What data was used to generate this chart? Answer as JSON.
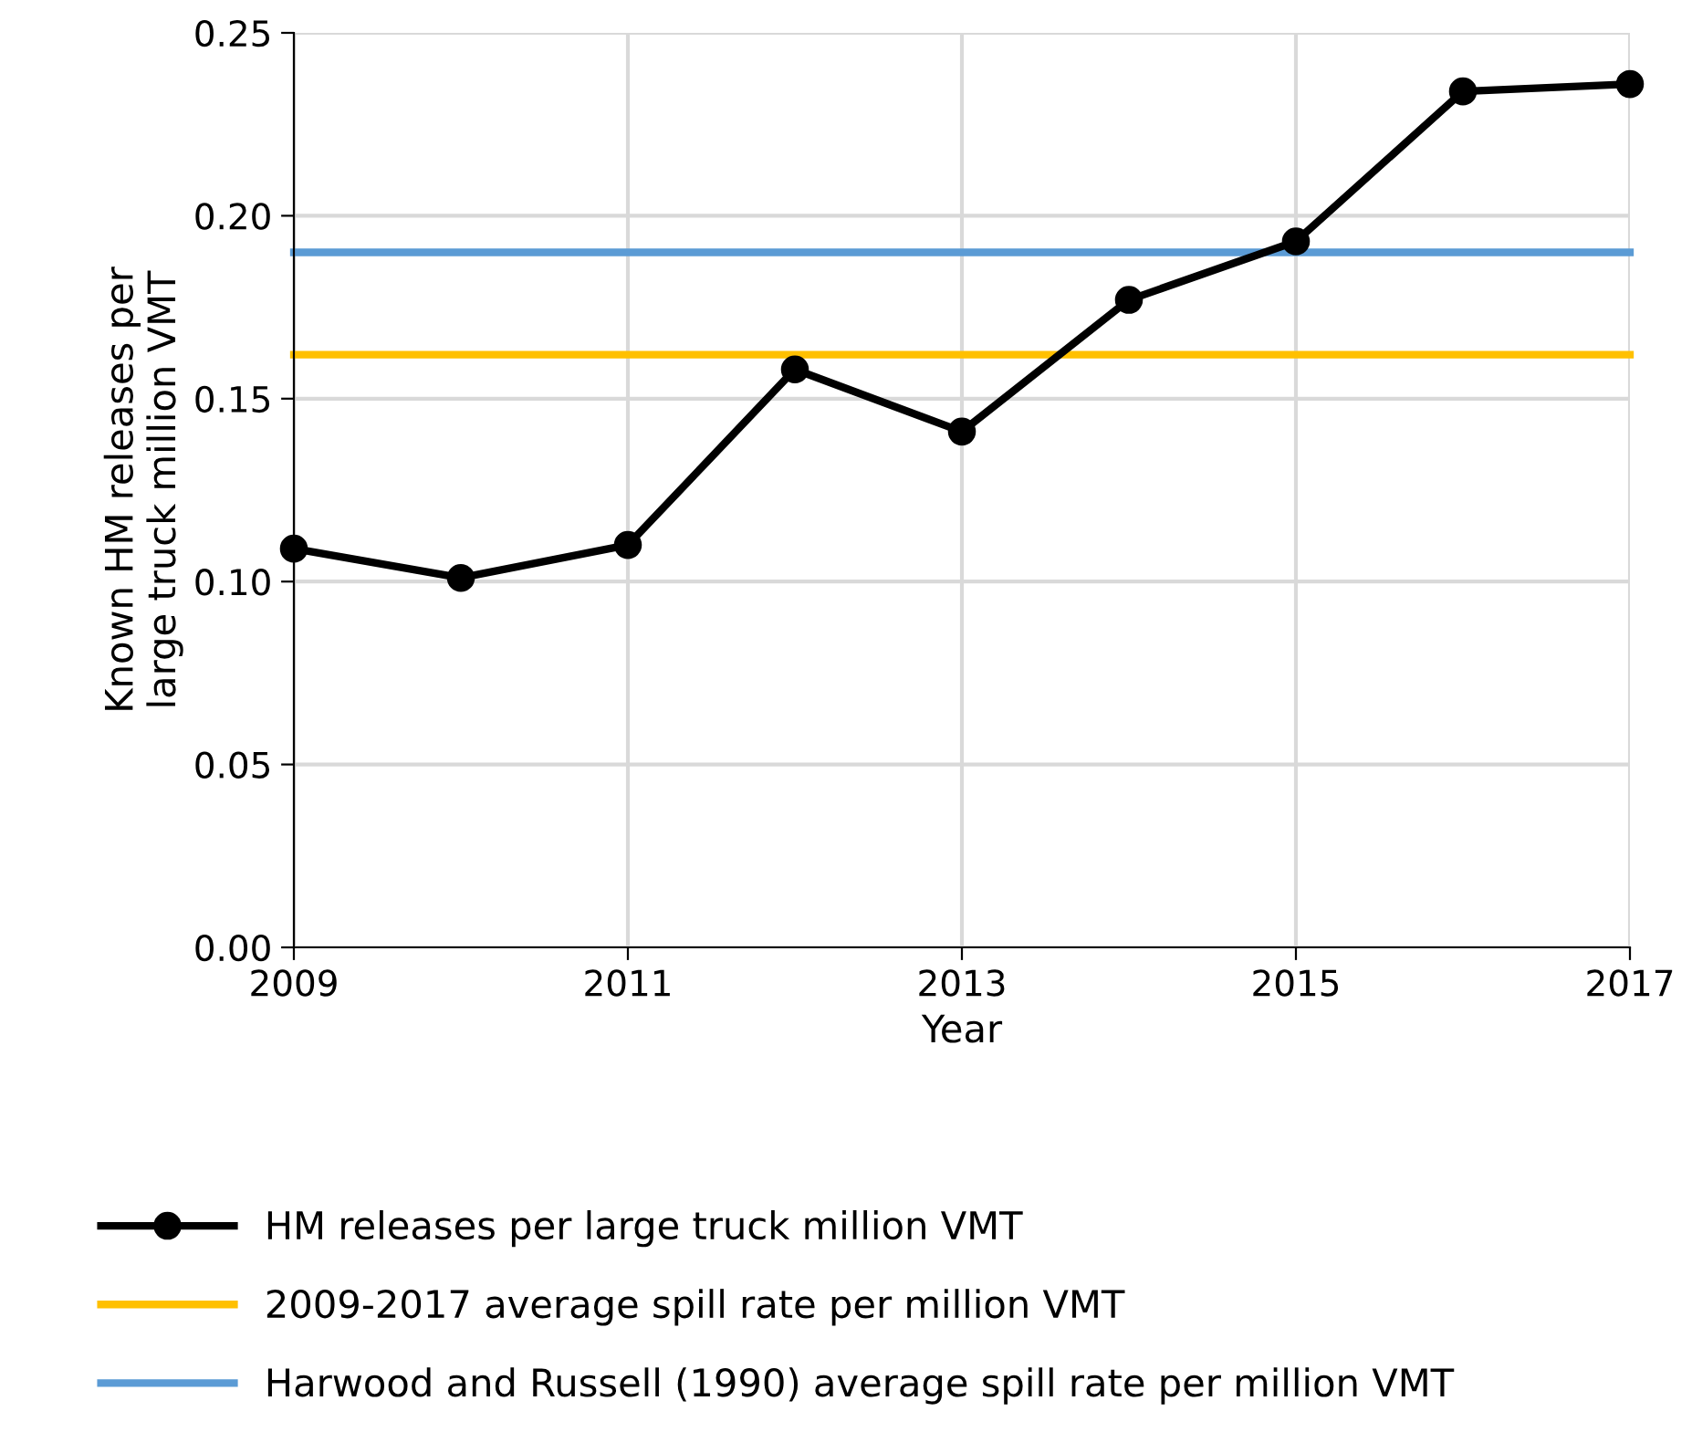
{
  "chart_data": {
    "type": "line",
    "xlabel": "Year",
    "ylabel": "Known HM releases per\nlarge truck million VMT",
    "x": [
      2009,
      2010,
      2011,
      2012,
      2013,
      2014,
      2015,
      2016,
      2017
    ],
    "series": [
      {
        "name": "HM releases per large truck million VMT",
        "color": "#000000",
        "values": [
          0.109,
          0.101,
          0.11,
          0.158,
          0.141,
          0.177,
          0.193,
          0.234,
          0.236
        ]
      },
      {
        "name": "2009-2017 average spill rate per million VMT",
        "color": "#ffc000",
        "values": [
          0.162,
          0.162,
          0.162,
          0.162,
          0.162,
          0.162,
          0.162,
          0.162,
          0.162
        ],
        "marker": "none"
      },
      {
        "name": "Harwood and Russell (1990) average spill rate per million VMT",
        "color": "#5b9bd5",
        "values": [
          0.19,
          0.19,
          0.19,
          0.19,
          0.19,
          0.19,
          0.19,
          0.19,
          0.19
        ],
        "marker": "none"
      }
    ],
    "marker": "circle",
    "xlim": [
      2009,
      2017
    ],
    "xticks": [
      2009,
      2011,
      2013,
      2015,
      2017
    ],
    "ylim": [
      0,
      0.25
    ],
    "yticks": [
      {
        "value": 0,
        "label": "0.00"
      },
      {
        "value": 0.05,
        "label": "0.05"
      },
      {
        "value": 0.1,
        "label": "0.10"
      },
      {
        "value": 0.15,
        "label": "0.15"
      },
      {
        "value": 0.2,
        "label": "0.20"
      },
      {
        "value": 0.25,
        "label": "0.25"
      }
    ],
    "grid": true,
    "legend": "bottom"
  }
}
